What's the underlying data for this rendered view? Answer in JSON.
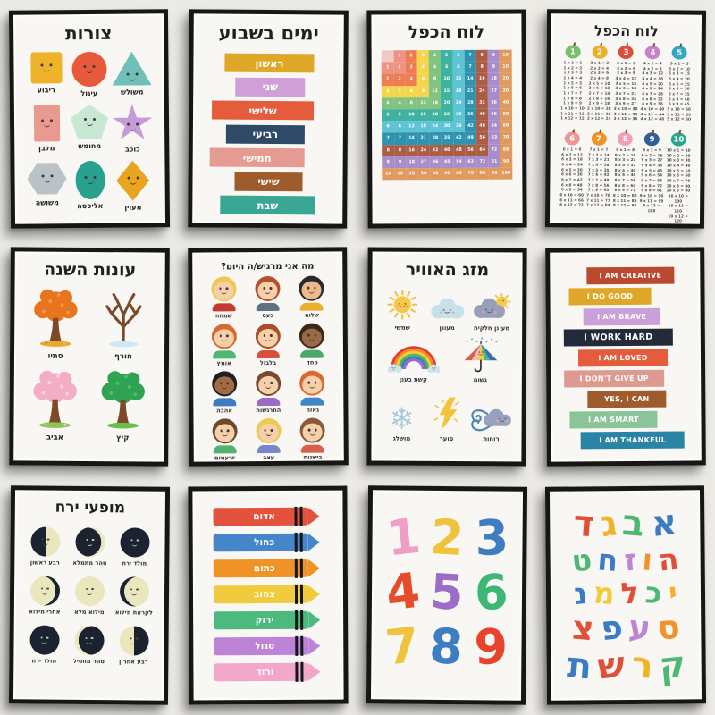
{
  "page": {
    "background": "#eceae5",
    "frame_color": "#161616",
    "paper_color": "#f9f7f3"
  },
  "posters": {
    "shapes": {
      "title": "צורות",
      "items": [
        {
          "label": "ריבוע",
          "shape": "square",
          "color": "#efb32b"
        },
        {
          "label": "עיגול",
          "shape": "circle",
          "color": "#e8593c"
        },
        {
          "label": "משולש",
          "shape": "triangle",
          "color": "#6fc0b8"
        },
        {
          "label": "מלבן",
          "shape": "rectangle",
          "color": "#e89a8e"
        },
        {
          "label": "מחומש",
          "shape": "pentagon",
          "color": "#c8e8d3"
        },
        {
          "label": "כוכב",
          "shape": "star",
          "color": "#c79bd8"
        },
        {
          "label": "משושה",
          "shape": "hexagon",
          "color": "#b9c2c6"
        },
        {
          "label": "אליפסה",
          "shape": "ellipse",
          "color": "#28a18f"
        },
        {
          "label": "מעוין",
          "shape": "rhombus",
          "color": "#eaa41f"
        }
      ]
    },
    "days": {
      "title": "ימים בשבוע",
      "items": [
        {
          "label": "ראשון",
          "color": "#dfa728"
        },
        {
          "label": "שני",
          "color": "#cfa0d8"
        },
        {
          "label": "שלישי",
          "color": "#e55c3c"
        },
        {
          "label": "רביעי",
          "color": "#2e4a66"
        },
        {
          "label": "חמישי",
          "color": "#e59a92"
        },
        {
          "label": "שישי",
          "color": "#9e5c2d"
        },
        {
          "label": "שבת",
          "color": "#3aa795"
        }
      ]
    },
    "mult_grid": {
      "title": "לוח הכפל",
      "factors": [
        1,
        2,
        3,
        4,
        5,
        6,
        7,
        8,
        9,
        10
      ],
      "corner_color": "#f2c8c2",
      "band_colors": [
        "#ef9286",
        "#ee7c55",
        "#f6d44b",
        "#83c27f",
        "#3fb2a0",
        "#5dc3d5",
        "#2f93b0",
        "#ab5c45",
        "#a98dca",
        "#e09a5e"
      ]
    },
    "mult_apples": {
      "title": "לוח הכפל",
      "max_multiplier": 12,
      "apples": [
        {
          "n": 1,
          "color": "#76c06d"
        },
        {
          "n": 2,
          "color": "#eaaf2b"
        },
        {
          "n": 3,
          "color": "#d8503c"
        },
        {
          "n": 4,
          "color": "#c683cc"
        },
        {
          "n": 5,
          "color": "#30a8c0"
        },
        {
          "n": 6,
          "color": "#e89a92"
        },
        {
          "n": 7,
          "color": "#ef9327"
        },
        {
          "n": 8,
          "color": "#f2a0ba"
        },
        {
          "n": 9,
          "color": "#2f5f96"
        },
        {
          "n": 10,
          "color": "#27a58f"
        }
      ]
    },
    "seasons": {
      "title": "עונות השנה",
      "items": [
        {
          "label": "סתיו",
          "season": "autumn"
        },
        {
          "label": "חורף",
          "season": "winter"
        },
        {
          "label": "אביב",
          "season": "spring"
        },
        {
          "label": "קיץ",
          "season": "summer"
        }
      ]
    },
    "feelings": {
      "title": "מה אני מרגיש/ה היום?",
      "items": [
        {
          "label": "שמחה",
          "hair": "#ecc94f",
          "skin": "#f6cfab",
          "shirt": "#c23b32"
        },
        {
          "label": "כעס",
          "hair": "#b5512e",
          "skin": "#f6cfab",
          "shirt": "#5f7282"
        },
        {
          "label": "שלוה",
          "hair": "#27292e",
          "skin": "#eeb88b",
          "shirt": "#eab02e"
        },
        {
          "label": "אומץ",
          "hair": "#d96a2e",
          "skin": "#f6cfab",
          "shirt": "#4db872"
        },
        {
          "label": "בלבול",
          "hair": "#a8502e",
          "skin": "#f6cfab",
          "shirt": "#d8503c"
        },
        {
          "label": "פחד",
          "hair": "#38281e",
          "skin": "#9a6a44",
          "shirt": "#4aa86a"
        },
        {
          "label": "אהבה",
          "hair": "#1f1f22",
          "skin": "#a06b45",
          "shirt": "#3b7cc4"
        },
        {
          "label": "התרגשות",
          "hair": "#7a4a2e",
          "skin": "#f6cfab",
          "shirt": "#9b6bc4"
        },
        {
          "label": "גאוה",
          "hair": "#d96a2e",
          "skin": "#f6cfab",
          "shirt": "#3f86c8"
        },
        {
          "label": "שיעמום",
          "hair": "#6a4a2e",
          "skin": "#f6cfab",
          "shirt": "#54b06e"
        },
        {
          "label": "עצב",
          "hair": "#ecc94f",
          "skin": "#f6cfab",
          "shirt": "#7a86c8"
        },
        {
          "label": "בישנות",
          "hair": "#8a5a3a",
          "skin": "#f6cfab",
          "shirt": "#d8604a"
        }
      ]
    },
    "weather": {
      "title": "מזג האוויר",
      "rows": [
        [
          {
            "label": "שמשי",
            "icon": "sun"
          },
          {
            "label": "מעונן",
            "icon": "cloud"
          },
          {
            "label": "מעונן חלקית",
            "icon": "cloud-sun"
          }
        ],
        [
          {
            "label": "קשת בענן",
            "icon": "rainbow"
          },
          {
            "label": "גשום",
            "icon": "umbrella"
          }
        ],
        [
          {
            "label": "מושלג",
            "icon": "snowflake",
            "glyph": "❄"
          },
          {
            "label": "סוער",
            "icon": "lightning"
          },
          {
            "label": "רוחות",
            "icon": "wind"
          }
        ]
      ]
    },
    "affirmations": {
      "items": [
        {
          "text": "I AM CREATIVE",
          "color": "#b94a30"
        },
        {
          "text": "I DO GOOD",
          "color": "#dfa728"
        },
        {
          "text": "I AM BRAVE",
          "color": "#c9a0d8"
        },
        {
          "text": "I WORK HARD",
          "color": "#232b3b"
        },
        {
          "text": "I AM LOVED",
          "color": "#e55c3c"
        },
        {
          "text": "I DON'T GIVE UP",
          "color": "#dd9a90"
        },
        {
          "text": "YES, I CAN",
          "color": "#9e5c2d"
        },
        {
          "text": "I AM SMART",
          "color": "#8cc49a"
        },
        {
          "text": "I AM THANKFUL",
          "color": "#2a84a5"
        }
      ]
    },
    "moons": {
      "title": "מופעי ירח",
      "items": [
        {
          "label": "רבע ראשון",
          "phase": "first-quarter"
        },
        {
          "label": "סהר מתמלא",
          "phase": "waxing-crescent"
        },
        {
          "label": "מולד ירח",
          "phase": "new"
        },
        {
          "label": "אחרי מילוא",
          "phase": "waning-gibbous"
        },
        {
          "label": "מילוא מלא",
          "phase": "full"
        },
        {
          "label": "לקראת מילוא",
          "phase": "waxing-gibbous"
        },
        {
          "label": "מולד ירח",
          "phase": "new"
        },
        {
          "label": "סהר מחסיל",
          "phase": "waning-crescent"
        },
        {
          "label": "רבע אחרון",
          "phase": "last-quarter"
        }
      ]
    },
    "crayons": {
      "items": [
        {
          "label": "אדום",
          "color": "#e2523c"
        },
        {
          "label": "כחול",
          "color": "#4585ca"
        },
        {
          "label": "כתום",
          "color": "#ef9327"
        },
        {
          "label": "צהוב",
          "color": "#f1cb3e"
        },
        {
          "label": "ירוק",
          "color": "#4cba7c"
        },
        {
          "label": "סגול",
          "color": "#bd83d6"
        },
        {
          "label": "ורוד",
          "color": "#f2a6c8"
        }
      ]
    },
    "numbers": {
      "rows": [
        [
          {
            "value": "1",
            "color": "#ef9ec6"
          },
          {
            "value": "2",
            "color": "#f0c33c"
          },
          {
            "value": "3",
            "color": "#3d7dc2"
          }
        ],
        [
          {
            "value": "4",
            "color": "#e64b2c"
          },
          {
            "value": "5",
            "color": "#9b6cc8"
          },
          {
            "value": "6",
            "color": "#3cb874"
          }
        ],
        [
          {
            "value": "7",
            "color": "#f0c33c"
          },
          {
            "value": "8",
            "color": "#3d7dc2"
          },
          {
            "value": "9",
            "color": "#e8432e"
          }
        ]
      ]
    },
    "alphabet": {
      "rows": [
        [
          {
            "char": "א",
            "color": "#3b7cc4"
          },
          {
            "char": "ב",
            "color": "#4db872"
          },
          {
            "char": "ג",
            "color": "#f0b429"
          },
          {
            "char": "ד",
            "color": "#e05039"
          }
        ],
        [
          {
            "char": "ה",
            "color": "#e05039"
          },
          {
            "char": "ו",
            "color": "#f09429"
          },
          {
            "char": "ז",
            "color": "#bd83d6"
          },
          {
            "char": "ח",
            "color": "#3b7cc4"
          },
          {
            "char": "ט",
            "color": "#4db872"
          }
        ],
        [
          {
            "char": "י",
            "color": "#f0b429"
          },
          {
            "char": "כ",
            "color": "#4db872"
          },
          {
            "char": "ל",
            "color": "#e05039"
          },
          {
            "char": "מ",
            "color": "#f1cb3e"
          },
          {
            "char": "נ",
            "color": "#3b7cc4"
          }
        ],
        [
          {
            "char": "ס",
            "color": "#f09429"
          },
          {
            "char": "ע",
            "color": "#bd83d6"
          },
          {
            "char": "פ",
            "color": "#3b7cc4"
          },
          {
            "char": "צ",
            "color": "#e05039"
          }
        ],
        [
          {
            "char": "ק",
            "color": "#4db872"
          },
          {
            "char": "ר",
            "color": "#f0b429"
          },
          {
            "char": "ש",
            "color": "#e05039"
          },
          {
            "char": "ת",
            "color": "#3b7cc4"
          }
        ]
      ]
    }
  }
}
